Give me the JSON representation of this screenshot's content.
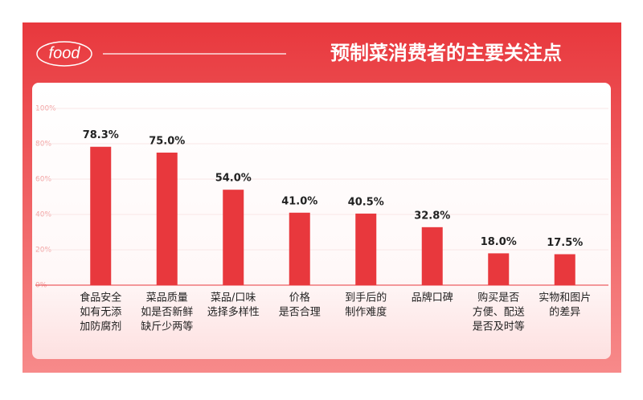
{
  "chart_data": {
    "type": "bar",
    "logo": "food",
    "title": "预制菜消费者的主要关注点",
    "categories": [
      [
        "食品安全",
        "如有无添",
        "加防腐剂"
      ],
      [
        "菜品质量",
        "如是否新鲜",
        "缺斤少两等"
      ],
      [
        "菜品/口味",
        "选择多样性"
      ],
      [
        "价格",
        "是否合理"
      ],
      [
        "到手后的",
        "制作难度"
      ],
      [
        "品牌口碑"
      ],
      [
        "购买是否",
        "方便、配送",
        "是否及时等"
      ],
      [
        "实物和图片",
        "的差异"
      ]
    ],
    "values": [
      78.3,
      75.0,
      54.0,
      41.0,
      40.5,
      32.8,
      18.0,
      17.5
    ],
    "value_labels": [
      "78.3%",
      "75.0%",
      "54.0%",
      "41.0%",
      "40.5%",
      "32.8%",
      "18.0%",
      "17.5%"
    ],
    "color": "#e8383d",
    "ylim": [
      0,
      100
    ],
    "yticks": [
      {
        "value": 0,
        "label": "0%"
      },
      {
        "value": 20,
        "label": "20%"
      },
      {
        "value": 40,
        "label": "40%"
      },
      {
        "value": 60,
        "label": "60%"
      },
      {
        "value": 80,
        "label": "80%"
      },
      {
        "value": 100,
        "label": "100%"
      }
    ],
    "grid": true
  }
}
